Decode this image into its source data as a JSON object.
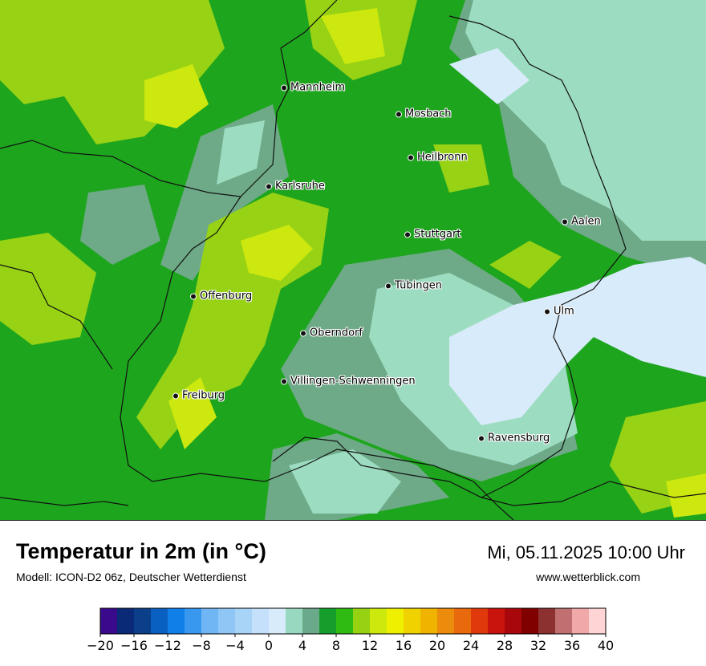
{
  "map": {
    "colors": {
      "green_dark": "#17a323",
      "green_mid": "#2dbb14",
      "green_light": "#97d214",
      "yellow_green": "#cce80f",
      "teal": "#6eaa88",
      "mint": "#9cdcc0",
      "pale_blue": "#d8ebfa",
      "border": "#111111"
    },
    "cities": [
      {
        "name": "Mannheim",
        "icon": "city-dot-icon"
      },
      {
        "name": "Mosbach",
        "icon": "city-dot-icon"
      },
      {
        "name": "Heilbronn",
        "icon": "city-dot-icon"
      },
      {
        "name": "Karlsruhe",
        "icon": "city-dot-icon"
      },
      {
        "name": "Stuttgart",
        "icon": "city-dot-icon"
      },
      {
        "name": "Aalen",
        "icon": "city-dot-icon"
      },
      {
        "name": "Tübingen",
        "icon": "city-dot-icon"
      },
      {
        "name": "Offenburg",
        "icon": "city-dot-icon"
      },
      {
        "name": "Ulm",
        "icon": "city-dot-icon"
      },
      {
        "name": "Oberndorf",
        "icon": "city-dot-icon"
      },
      {
        "name": "Villingen-Schwenningen",
        "icon": "city-dot-icon"
      },
      {
        "name": "Freiburg",
        "icon": "city-dot-icon"
      },
      {
        "name": "Ravensburg",
        "icon": "city-dot-icon"
      }
    ]
  },
  "info": {
    "title": "Temperatur in 2m (in °C)",
    "model": "Modell: ICON-D2 06z, Deutscher Wetterdienst",
    "datetime": "Mi, 05.11.2025 10:00 Uhr",
    "website": "www.wetterblick.com"
  },
  "legend": {
    "ticks": [
      "−20",
      "−16",
      "−12",
      "−8",
      "−4",
      "0",
      "4",
      "8",
      "12",
      "16",
      "20",
      "24",
      "28",
      "32",
      "36",
      "40"
    ],
    "colors": [
      "#3a0a8c",
      "#0a2a78",
      "#0b3f8a",
      "#0a60c0",
      "#1080e8",
      "#3898f0",
      "#70b6f4",
      "#90c6f6",
      "#a8d4f8",
      "#c4e0fa",
      "#d8ebfa",
      "#98d8c0",
      "#6aaa8a",
      "#169e2c",
      "#30bb12",
      "#96d212",
      "#cce80c",
      "#eef000",
      "#f0d200",
      "#f0b400",
      "#ec8c0c",
      "#e86a0c",
      "#e03a0c",
      "#c8140c",
      "#a8080c",
      "#800000",
      "#8c3030",
      "#c07070",
      "#f0a8a8",
      "#ffd4d4"
    ]
  }
}
